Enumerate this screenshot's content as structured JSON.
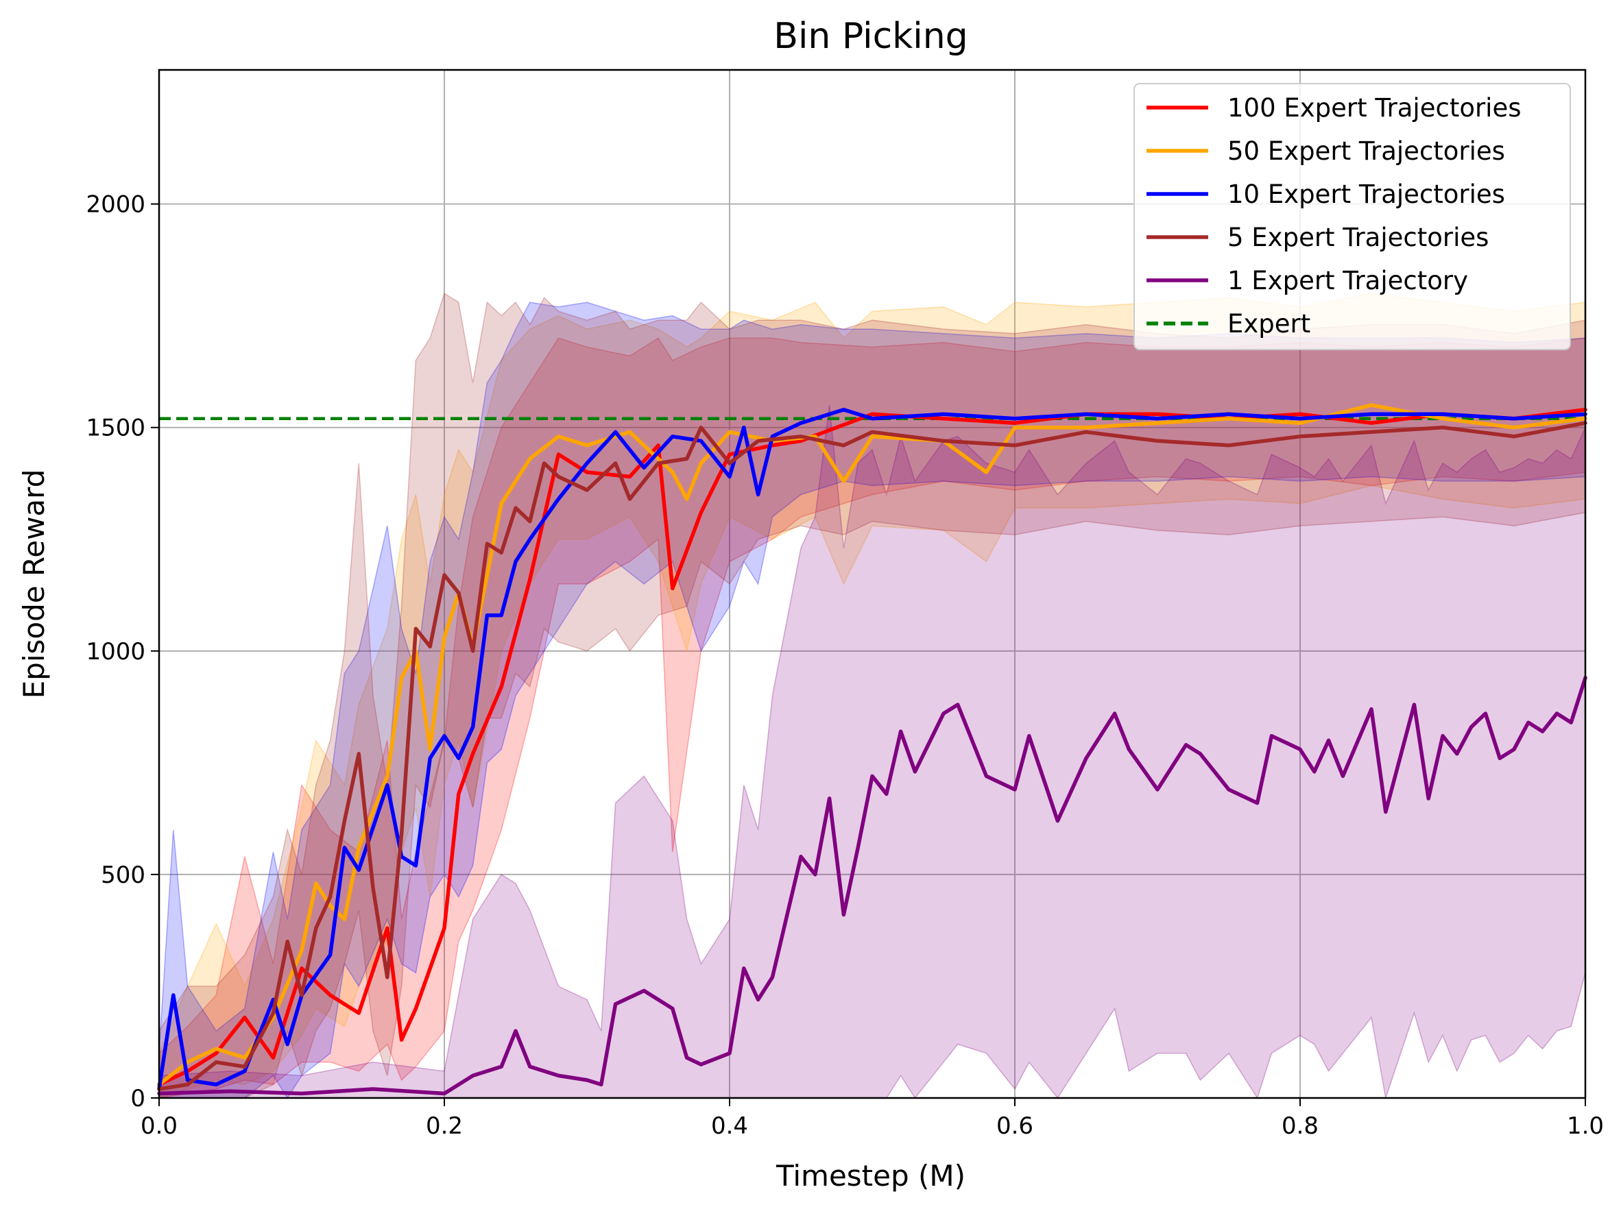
{
  "chart_data": {
    "type": "line",
    "title": "Bin Picking",
    "xlabel": "Timestep (M)",
    "ylabel": "Episode Reward",
    "xlim": [
      0,
      1
    ],
    "ylim": [
      0,
      2300
    ],
    "xticks": [
      0,
      0.2,
      0.4,
      0.6,
      0.8,
      1.0
    ],
    "xtick_labels": [
      "0.0",
      "0.2",
      "0.4",
      "0.6",
      "0.8",
      "1.0"
    ],
    "yticks": [
      0,
      500,
      1000,
      1500,
      2000
    ],
    "ytick_labels": [
      "0",
      "500",
      "1000",
      "1500",
      "2000"
    ],
    "grid": true,
    "legend_position": "top-right",
    "expert_line": {
      "name": "Expert",
      "value": 1520,
      "color": "#008000",
      "style": "dashed"
    },
    "series": [
      {
        "name": "100 Expert Trajectories",
        "color": "#ff0000",
        "x": [
          0.0,
          0.02,
          0.04,
          0.06,
          0.08,
          0.1,
          0.12,
          0.14,
          0.16,
          0.17,
          0.18,
          0.2,
          0.21,
          0.22,
          0.24,
          0.26,
          0.28,
          0.3,
          0.33,
          0.35,
          0.36,
          0.38,
          0.4,
          0.43,
          0.45,
          0.5,
          0.55,
          0.6,
          0.65,
          0.7,
          0.75,
          0.8,
          0.85,
          0.9,
          0.95,
          1.0
        ],
        "values": [
          30,
          60,
          100,
          180,
          90,
          290,
          230,
          190,
          380,
          130,
          200,
          380,
          680,
          770,
          920,
          1160,
          1440,
          1400,
          1390,
          1460,
          1140,
          1310,
          1440,
          1460,
          1470,
          1530,
          1520,
          1510,
          1530,
          1530,
          1520,
          1530,
          1510,
          1530,
          1520,
          1540
        ],
        "band_low": [
          0,
          10,
          20,
          40,
          30,
          80,
          80,
          60,
          120,
          40,
          70,
          150,
          350,
          420,
          600,
          850,
          1150,
          1150,
          1200,
          1250,
          550,
          1000,
          1200,
          1250,
          1300,
          1350,
          1380,
          1360,
          1380,
          1390,
          1380,
          1390,
          1370,
          1390,
          1380,
          1400
        ],
        "band_high": [
          100,
          160,
          230,
          540,
          300,
          700,
          600,
          550,
          800,
          400,
          550,
          800,
          1100,
          1300,
          1500,
          1600,
          1700,
          1680,
          1660,
          1700,
          1650,
          1680,
          1700,
          1700,
          1690,
          1680,
          1690,
          1670,
          1690,
          1680,
          1680,
          1690,
          1680,
          1690,
          1680,
          1700
        ]
      },
      {
        "name": "50 Expert Trajectories",
        "color": "#ffa500",
        "x": [
          0.0,
          0.02,
          0.04,
          0.06,
          0.08,
          0.1,
          0.11,
          0.12,
          0.13,
          0.14,
          0.16,
          0.17,
          0.18,
          0.19,
          0.2,
          0.21,
          0.22,
          0.24,
          0.26,
          0.28,
          0.3,
          0.33,
          0.35,
          0.36,
          0.37,
          0.38,
          0.4,
          0.43,
          0.46,
          0.48,
          0.5,
          0.55,
          0.58,
          0.6,
          0.65,
          0.7,
          0.75,
          0.8,
          0.85,
          0.9,
          0.95,
          1.0
        ],
        "values": [
          30,
          80,
          110,
          90,
          180,
          330,
          480,
          430,
          400,
          560,
          720,
          940,
          1000,
          780,
          1030,
          1130,
          1010,
          1330,
          1430,
          1480,
          1460,
          1490,
          1430,
          1400,
          1340,
          1420,
          1490,
          1470,
          1480,
          1380,
          1480,
          1470,
          1400,
          1500,
          1500,
          1510,
          1520,
          1510,
          1550,
          1520,
          1500,
          1520
        ],
        "band_low": [
          0,
          20,
          40,
          30,
          60,
          140,
          200,
          180,
          160,
          250,
          350,
          550,
          650,
          450,
          700,
          800,
          650,
          1000,
          1150,
          1250,
          1250,
          1300,
          1200,
          1100,
          1000,
          1150,
          1300,
          1250,
          1300,
          1150,
          1280,
          1270,
          1200,
          1320,
          1320,
          1330,
          1340,
          1330,
          1370,
          1340,
          1320,
          1340
        ],
        "band_high": [
          100,
          250,
          390,
          250,
          400,
          650,
          800,
          750,
          700,
          880,
          1050,
          1250,
          1350,
          1150,
          1350,
          1450,
          1400,
          1650,
          1720,
          1750,
          1720,
          1740,
          1720,
          1700,
          1680,
          1700,
          1760,
          1740,
          1780,
          1700,
          1760,
          1770,
          1730,
          1780,
          1770,
          1780,
          1790,
          1770,
          1800,
          1780,
          1760,
          1780
        ]
      },
      {
        "name": "10 Expert Trajectories",
        "color": "#0000ff",
        "x": [
          0.0,
          0.01,
          0.02,
          0.04,
          0.06,
          0.08,
          0.09,
          0.1,
          0.12,
          0.13,
          0.14,
          0.16,
          0.17,
          0.18,
          0.19,
          0.2,
          0.21,
          0.22,
          0.23,
          0.24,
          0.25,
          0.26,
          0.28,
          0.3,
          0.32,
          0.34,
          0.36,
          0.38,
          0.4,
          0.41,
          0.42,
          0.43,
          0.45,
          0.48,
          0.5,
          0.55,
          0.6,
          0.65,
          0.7,
          0.75,
          0.8,
          0.85,
          0.9,
          0.95,
          1.0
        ],
        "values": [
          20,
          230,
          40,
          30,
          60,
          220,
          120,
          230,
          320,
          560,
          510,
          700,
          540,
          520,
          760,
          810,
          760,
          830,
          1080,
          1080,
          1200,
          1250,
          1340,
          1420,
          1490,
          1410,
          1480,
          1470,
          1390,
          1500,
          1350,
          1480,
          1510,
          1540,
          1520,
          1530,
          1520,
          1530,
          1520,
          1530,
          1520,
          1530,
          1530,
          1520,
          1530
        ],
        "band_low": [
          0,
          0,
          0,
          0,
          0,
          50,
          0,
          50,
          100,
          300,
          250,
          400,
          300,
          280,
          450,
          500,
          450,
          520,
          750,
          780,
          900,
          950,
          1050,
          1150,
          1200,
          1150,
          1200,
          1000,
          1100,
          1200,
          1150,
          1300,
          1350,
          1380,
          1370,
          1380,
          1370,
          1380,
          1380,
          1390,
          1380,
          1390,
          1380,
          1380,
          1390
        ],
        "band_high": [
          100,
          600,
          250,
          150,
          200,
          550,
          400,
          600,
          700,
          950,
          1000,
          1280,
          1050,
          950,
          1200,
          1300,
          1250,
          1400,
          1600,
          1650,
          1720,
          1780,
          1770,
          1780,
          1760,
          1740,
          1750,
          1720,
          1720,
          1740,
          1730,
          1720,
          1730,
          1720,
          1720,
          1710,
          1700,
          1710,
          1700,
          1710,
          1700,
          1700,
          1700,
          1690,
          1700
        ]
      },
      {
        "name": "5 Expert Trajectories",
        "color": "#a52a2a",
        "x": [
          0.0,
          0.02,
          0.04,
          0.06,
          0.08,
          0.09,
          0.1,
          0.11,
          0.12,
          0.13,
          0.14,
          0.15,
          0.16,
          0.17,
          0.18,
          0.19,
          0.2,
          0.21,
          0.22,
          0.23,
          0.24,
          0.25,
          0.26,
          0.27,
          0.28,
          0.3,
          0.32,
          0.33,
          0.35,
          0.37,
          0.38,
          0.4,
          0.42,
          0.45,
          0.48,
          0.5,
          0.55,
          0.6,
          0.65,
          0.7,
          0.75,
          0.8,
          0.85,
          0.9,
          0.95,
          1.0
        ],
        "values": [
          20,
          30,
          80,
          70,
          190,
          350,
          230,
          380,
          450,
          620,
          770,
          470,
          270,
          590,
          1050,
          1010,
          1170,
          1130,
          1000,
          1240,
          1220,
          1320,
          1290,
          1420,
          1390,
          1360,
          1420,
          1340,
          1420,
          1430,
          1500,
          1420,
          1470,
          1480,
          1460,
          1490,
          1470,
          1460,
          1490,
          1470,
          1460,
          1480,
          1490,
          1500,
          1480,
          1510
        ],
        "band_low": [
          0,
          0,
          0,
          0,
          30,
          150,
          50,
          150,
          200,
          300,
          420,
          150,
          50,
          250,
          700,
          650,
          800,
          760,
          650,
          850,
          850,
          950,
          920,
          1050,
          1020,
          1000,
          1050,
          1000,
          1080,
          1100,
          1200,
          1150,
          1250,
          1280,
          1260,
          1290,
          1270,
          1260,
          1290,
          1270,
          1260,
          1280,
          1290,
          1300,
          1280,
          1310
        ],
        "band_high": [
          150,
          250,
          250,
          320,
          450,
          600,
          500,
          700,
          800,
          1000,
          1420,
          900,
          700,
          1100,
          1650,
          1700,
          1800,
          1780,
          1600,
          1780,
          1750,
          1780,
          1730,
          1790,
          1760,
          1740,
          1760,
          1720,
          1740,
          1740,
          1780,
          1720,
          1740,
          1740,
          1720,
          1740,
          1720,
          1710,
          1730,
          1710,
          1700,
          1720,
          1730,
          1730,
          1710,
          1740
        ]
      },
      {
        "name": "1 Expert Trajectory",
        "color": "#800080",
        "x": [
          0.0,
          0.05,
          0.1,
          0.15,
          0.2,
          0.22,
          0.24,
          0.25,
          0.26,
          0.28,
          0.3,
          0.31,
          0.32,
          0.34,
          0.36,
          0.37,
          0.38,
          0.4,
          0.41,
          0.42,
          0.43,
          0.45,
          0.46,
          0.47,
          0.48,
          0.49,
          0.5,
          0.51,
          0.52,
          0.53,
          0.55,
          0.56,
          0.58,
          0.6,
          0.61,
          0.63,
          0.65,
          0.67,
          0.68,
          0.7,
          0.72,
          0.73,
          0.75,
          0.77,
          0.78,
          0.8,
          0.81,
          0.82,
          0.83,
          0.85,
          0.86,
          0.88,
          0.89,
          0.9,
          0.91,
          0.92,
          0.93,
          0.94,
          0.95,
          0.96,
          0.97,
          0.98,
          0.99,
          1.0
        ],
        "values": [
          10,
          15,
          10,
          20,
          10,
          50,
          70,
          150,
          70,
          50,
          40,
          30,
          210,
          240,
          200,
          90,
          75,
          100,
          290,
          220,
          270,
          540,
          500,
          670,
          410,
          560,
          720,
          680,
          820,
          730,
          860,
          880,
          720,
          690,
          810,
          620,
          760,
          860,
          780,
          690,
          790,
          770,
          690,
          660,
          810,
          780,
          730,
          800,
          720,
          870,
          640,
          880,
          670,
          810,
          770,
          830,
          860,
          760,
          780,
          840,
          820,
          860,
          840,
          940
        ],
        "band_low": [
          0,
          0,
          0,
          0,
          0,
          0,
          0,
          0,
          0,
          0,
          0,
          0,
          0,
          0,
          0,
          0,
          0,
          0,
          0,
          0,
          0,
          0,
          0,
          0,
          0,
          0,
          0,
          0,
          50,
          0,
          80,
          120,
          100,
          20,
          80,
          0,
          100,
          200,
          60,
          100,
          100,
          40,
          100,
          0,
          100,
          140,
          120,
          60,
          100,
          180,
          0,
          190,
          80,
          140,
          60,
          130,
          140,
          80,
          100,
          140,
          110,
          150,
          160,
          280
        ],
        "band_high": [
          50,
          60,
          50,
          80,
          60,
          400,
          500,
          480,
          420,
          250,
          220,
          150,
          660,
          720,
          620,
          400,
          300,
          400,
          700,
          600,
          900,
          1230,
          1300,
          1550,
          1230,
          1420,
          1450,
          1350,
          1480,
          1380,
          1470,
          1480,
          1420,
          1400,
          1450,
          1350,
          1420,
          1470,
          1400,
          1350,
          1430,
          1420,
          1380,
          1350,
          1440,
          1410,
          1390,
          1430,
          1380,
          1460,
          1330,
          1470,
          1360,
          1420,
          1400,
          1430,
          1450,
          1400,
          1410,
          1430,
          1420,
          1450,
          1430,
          1500
        ]
      }
    ]
  }
}
